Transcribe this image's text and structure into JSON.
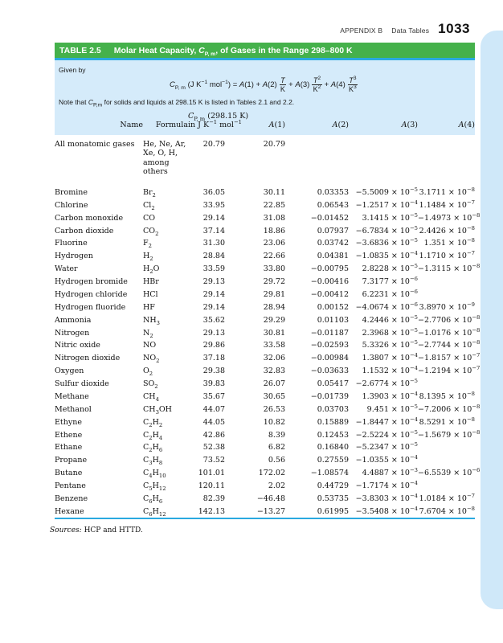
{
  "page": {
    "header": {
      "appendix": "APPENDIX B",
      "section": "Data Tables",
      "page_number": "1033"
    }
  },
  "colors": {
    "title_bar_green": "#45b14b",
    "rule_blue": "#2aa9e0",
    "panel_blue": "#d5ebfa",
    "edge_tab_blue": "#cfe8f9"
  },
  "table": {
    "label": "TABLE 2.5",
    "title": "Molar Heat Capacity, *(C)_(P, m), of Gases in the Range 298–800 K",
    "given_by_label": "Given by",
    "equation": {
      "lhs": "*(C)_(P, m) (J K^(−1) mol^(−1)) = *(A)(1) + *(A)(2)",
      "mid1": "+ *(A)(3)",
      "mid2": "+ *(A)(4)",
      "fracs": [
        {
          "n": "*(T)",
          "d": "K"
        },
        {
          "n": "*(T)^(2)",
          "d": "K^(2)"
        },
        {
          "n": "*(T)^(3)",
          "d": "K^(3)"
        }
      ]
    },
    "note": "Note that *(C)_(P,m) for solids and liquids at 298.15 K is listed in Tables 2.1 and 2.2.",
    "columns": {
      "name": "Name",
      "formula": "Formula",
      "cp_line1": "*(C)_(P, m) (298.15 K)",
      "cp_line2": "in J K^(−1) mol^(−1)",
      "a1": "*(A)(1)",
      "a2": "*(A)(2)",
      "a3": "*(A)(3)",
      "a4": "*(A)(4)"
    },
    "rows": [
      [
        "All monatomic gases",
        "He, Ne, Ar, Xe, O, H, among others",
        "20.79",
        "20.79",
        "",
        "",
        ""
      ],
      [
        "Bromine",
        "Br_(2)",
        "36.05",
        "30.11",
        "0.03353",
        "−5.5009 × 10^(−5)",
        "3.1711 × 10^(−8)"
      ],
      [
        "Chlorine",
        "Cl_(2)",
        "33.95",
        "22.85",
        "0.06543",
        "−1.2517 × 10^(−4)",
        "1.1484 × 10^(−7)"
      ],
      [
        "Carbon monoxide",
        "CO",
        "29.14",
        "31.08",
        "−0.01452",
        "3.1415 × 10^(−5)",
        "−1.4973 × 10^(−8)"
      ],
      [
        "Carbon dioxide",
        "CO_(2)",
        "37.14",
        "18.86",
        "0.07937",
        "−6.7834 × 10^(−5)",
        "2.4426 × 10^(−8)"
      ],
      [
        "Fluorine",
        "F_(2)",
        "31.30",
        "23.06",
        "0.03742",
        "−3.6836 × 10^(−5)",
        "1.351 × 10^(−8)"
      ],
      [
        "Hydrogen",
        "H_(2)",
        "28.84",
        "22.66",
        "0.04381",
        "−1.0835 × 10^(−4)",
        "1.1710 × 10^(−7)"
      ],
      [
        "Water",
        "H_(2)O",
        "33.59",
        "33.80",
        "−0.00795",
        "2.8228 × 10^(−5)",
        "−1.3115 × 10^(−8)"
      ],
      [
        "Hydrogen bromide",
        "HBr",
        "29.13",
        "29.72",
        "−0.00416",
        "7.3177 × 10^(−6)",
        ""
      ],
      [
        "Hydrogen chloride",
        "HCl",
        "29.14",
        "29.81",
        "−0.00412",
        "6.2231 × 10^(−6)",
        ""
      ],
      [
        "Hydrogen fluoride",
        "HF",
        "29.14",
        "28.94",
        "0.00152",
        "−4.0674 × 10^(−6)",
        "3.8970 × 10^(−9)"
      ],
      [
        "Ammonia",
        "NH_(3)",
        "35.62",
        "29.29",
        "0.01103",
        "4.2446 × 10^(−5)",
        "−2.7706 × 10^(−8)"
      ],
      [
        "Nitrogen",
        "N_(2)",
        "29.13",
        "30.81",
        "−0.01187",
        "2.3968 × 10^(−5)",
        "−1.0176 × 10^(−8)"
      ],
      [
        "Nitric oxide",
        "NO",
        "29.86",
        "33.58",
        "−0.02593",
        "5.3326 × 10^(−5)",
        "−2.7744 × 10^(−8)"
      ],
      [
        "Nitrogen dioxide",
        "NO_(2)",
        "37.18",
        "32.06",
        "−0.00984",
        "1.3807 × 10^(−4)",
        "−1.8157 × 10^(−7)"
      ],
      [
        "Oxygen",
        "O_(2)",
        "29.38",
        "32.83",
        "−0.03633",
        "1.1532 × 10^(−4)",
        "−1.2194 × 10^(−7)"
      ],
      [
        "Sulfur dioxide",
        "SO_(2)",
        "39.83",
        "26.07",
        "0.05417",
        "−2.6774 × 10^(−5)",
        ""
      ],
      [
        "Methane",
        "CH_(4)",
        "35.67",
        "30.65",
        "−0.01739",
        "1.3903 × 10^(−4)",
        "8.1395 × 10^(−8)"
      ],
      [
        "Methanol",
        "CH_(3)OH",
        "44.07",
        "26.53",
        "0.03703",
        "9.451 × 10^(−5)",
        "−7.2006 × 10^(−8)"
      ],
      [
        "Ethyne",
        "C_(2)H_(2)",
        "44.05",
        "10.82",
        "0.15889",
        "−1.8447 × 10^(−4)",
        "8.5291 × 10^(−8)"
      ],
      [
        "Ethene",
        "C_(2)H_(4)",
        "42.86",
        "8.39",
        "0.12453",
        "−2.5224 × 10^(−5)",
        "−1.5679 × 10^(−8)"
      ],
      [
        "Ethane",
        "C_(2)H_(6)",
        "52.38",
        "6.82",
        "0.16840",
        "−5.2347 × 10^(−5)",
        ""
      ],
      [
        "Propane",
        "C_(3)H_(8)",
        "73.52",
        "0.56",
        "0.27559",
        "−1.0355 × 10^(−4)",
        ""
      ],
      [
        "Butane",
        "C_(4)H_(10)",
        "101.01",
        "172.02",
        "−1.08574",
        "4.4887 × 10^(−3)",
        "−6.5539 × 10^(−6)"
      ],
      [
        "Pentane",
        "C_(5)H_(12)",
        "120.11",
        "2.02",
        "0.44729",
        "−1.7174 × 10^(−4)",
        ""
      ],
      [
        "Benzene",
        "C_(6)H_(6)",
        "82.39",
        "−46.48",
        "0.53735",
        "−3.8303 × 10^(−4)",
        "1.0184 × 10^(−7)"
      ],
      [
        "Hexane",
        "C_(6)H_(12)",
        "142.13",
        "−13.27",
        "0.61995",
        "−3.5408 × 10^(−4)",
        "7.6704 × 10^(−8)"
      ]
    ],
    "sources": "*(Sources:) HCP and HTTD."
  }
}
